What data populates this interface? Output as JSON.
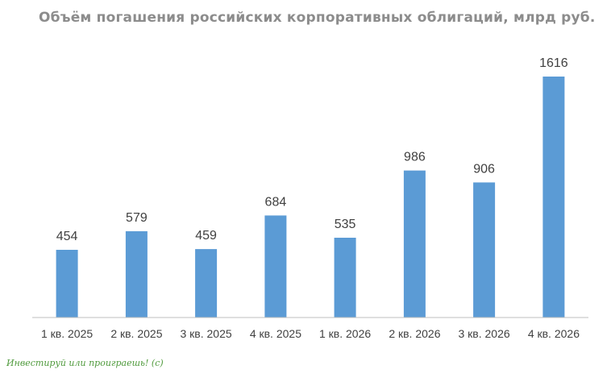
{
  "chart_data": {
    "type": "bar",
    "title": "Объём погашения российских корпоративных облигаций, млрд руб.",
    "categories": [
      "1 кв. 2025",
      "2 кв. 2025",
      "3 кв. 2025",
      "4 кв. 2025",
      "1 кв. 2026",
      "2 кв. 2026",
      "3 кв. 2026",
      "4 кв. 2026"
    ],
    "values": [
      454,
      579,
      459,
      684,
      535,
      986,
      906,
      1616
    ],
    "ylim": [
      0,
      1616
    ],
    "grid": false,
    "legend": "none",
    "colors": {
      "bar": "#5b9bd5"
    }
  },
  "watermark": "Инвестируй или проиграешь! (с)"
}
